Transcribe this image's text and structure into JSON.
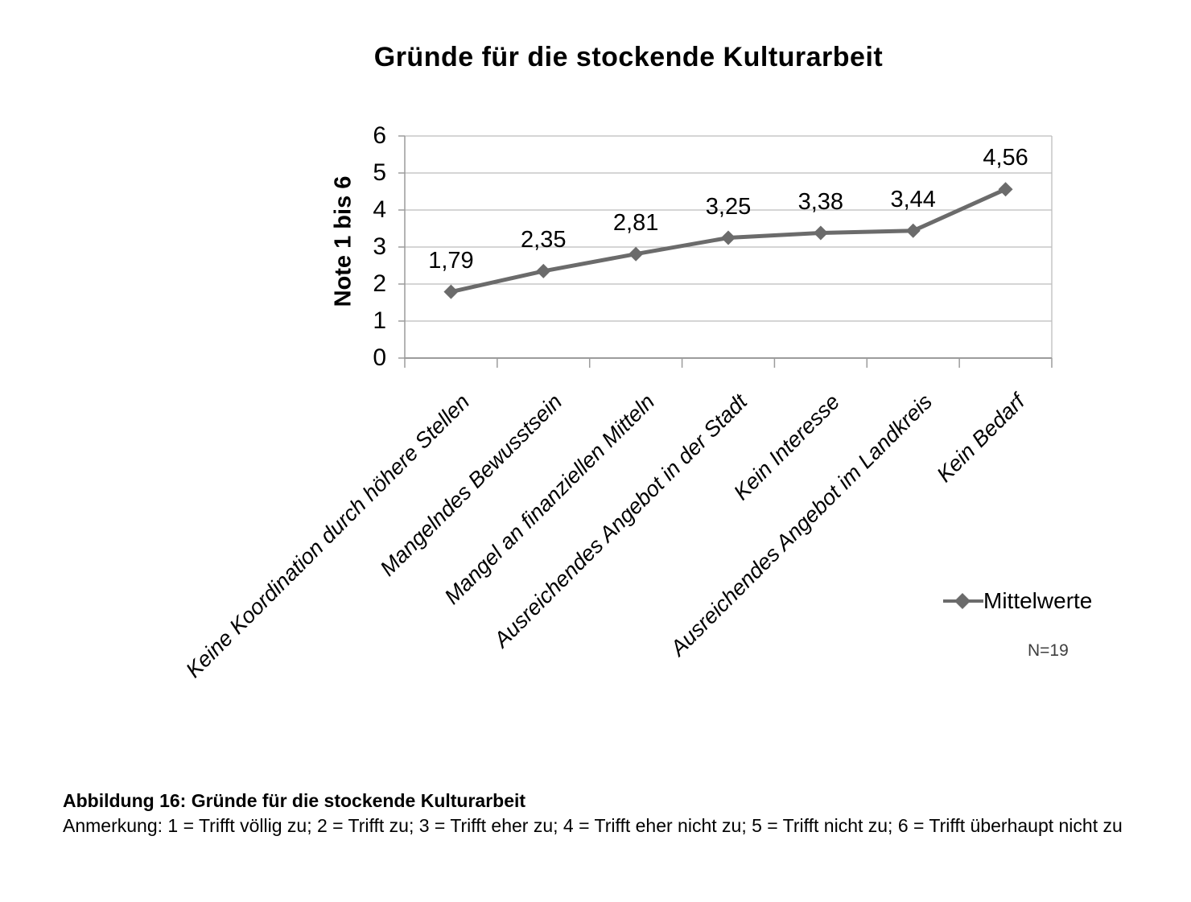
{
  "chart_data": {
    "type": "line",
    "title": "Gründe für die stockende Kulturarbeit",
    "ylabel": "Note 1 bis 6",
    "xlabel": "",
    "categories": [
      "Keine Koordination durch höhere Stellen",
      "Mangelndes Bewusstsein",
      "Mangel an finanziellen Mitteln",
      "Ausreichendes Angebot in der Stadt",
      "Kein Interesse",
      "Ausreichendes Angebot im Landkreis",
      "Kein Bedarf"
    ],
    "series": [
      {
        "name": "Mittelwerte",
        "values": [
          1.79,
          2.35,
          2.81,
          3.25,
          3.38,
          3.44,
          4.56
        ],
        "point_labels": [
          "1,79",
          "2,35",
          "2,81",
          "3,25",
          "3,38",
          "3,44",
          "4,56"
        ],
        "marker": "diamond"
      }
    ],
    "ylim": [
      0,
      6
    ],
    "yticks": [
      "0",
      "1",
      "2",
      "3",
      "4",
      "5",
      "6"
    ],
    "grid": true,
    "legend": {
      "label": "Mittelwerte",
      "position": "bottom-right"
    },
    "sample_size_label": "N=19"
  },
  "caption": {
    "heading": "Abbildung 16: Gründe für die stockende Kulturarbeit",
    "note": "Anmerkung: 1 = Trifft völlig zu; 2 = Trifft zu; 3 = Trifft eher zu; 4 = Trifft eher nicht zu; 5 = Trifft nicht zu; 6 = Trifft überhaupt nicht zu"
  },
  "colors": {
    "series_line": "#6b6b6b",
    "gridline": "#bcbcbc",
    "axis": "#9c9c9c",
    "text": "#000000",
    "sample_size": "#3f3f3f",
    "background": "#ffffff"
  }
}
